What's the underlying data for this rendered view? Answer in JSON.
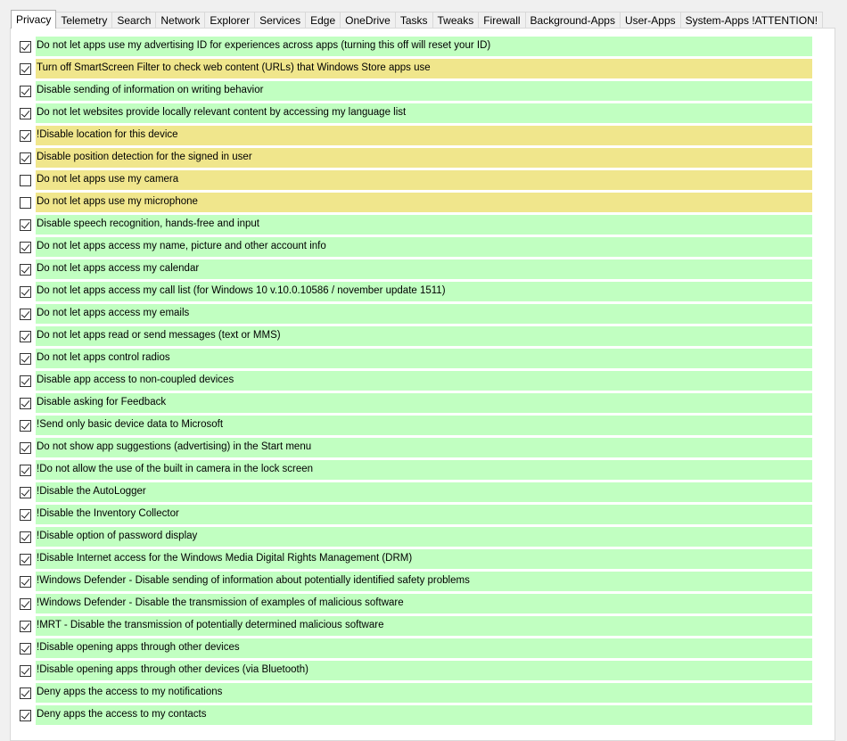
{
  "colors": {
    "safe": "#c1ffc1",
    "warning": "#f0e68c"
  },
  "tabs": [
    {
      "label": "Privacy",
      "active": true
    },
    {
      "label": "Telemetry"
    },
    {
      "label": "Search"
    },
    {
      "label": "Network"
    },
    {
      "label": "Explorer"
    },
    {
      "label": "Services"
    },
    {
      "label": "Edge"
    },
    {
      "label": "OneDrive"
    },
    {
      "label": "Tasks"
    },
    {
      "label": "Tweaks"
    },
    {
      "label": "Firewall"
    },
    {
      "label": "Background-Apps"
    },
    {
      "label": "User-Apps"
    },
    {
      "label": "System-Apps !ATTENTION!"
    }
  ],
  "items": [
    {
      "label": "Do not let apps use my advertising ID for experiences across apps (turning this off will reset your ID)",
      "checked": true,
      "color": "green"
    },
    {
      "label": "Turn off SmartScreen Filter to check web content (URLs) that Windows Store apps use",
      "checked": true,
      "color": "yellow"
    },
    {
      "label": "Disable sending of information on writing behavior",
      "checked": true,
      "color": "green"
    },
    {
      "label": "Do not let websites provide locally relevant content by accessing my language list",
      "checked": true,
      "color": "green"
    },
    {
      "label": "!Disable location for this device",
      "checked": true,
      "color": "yellow"
    },
    {
      "label": "Disable position detection for the signed in user",
      "checked": true,
      "color": "yellow"
    },
    {
      "label": "Do not let apps use my camera",
      "checked": false,
      "color": "yellow"
    },
    {
      "label": "Do not let apps use my microphone",
      "checked": false,
      "color": "yellow"
    },
    {
      "label": "Disable speech recognition, hands-free and input",
      "checked": true,
      "color": "green"
    },
    {
      "label": "Do not let apps access my name, picture and other account info",
      "checked": true,
      "color": "green"
    },
    {
      "label": "Do not let apps access my calendar",
      "checked": true,
      "color": "green"
    },
    {
      "label": "Do not let apps access my call list (for Windows 10 v.10.0.10586 / november update 1511)",
      "checked": true,
      "color": "green"
    },
    {
      "label": "Do not let apps access my emails",
      "checked": true,
      "color": "green"
    },
    {
      "label": "Do not let apps read or send messages (text or MMS)",
      "checked": true,
      "color": "green"
    },
    {
      "label": "Do not let apps control radios",
      "checked": true,
      "color": "green"
    },
    {
      "label": "Disable app access to non-coupled devices",
      "checked": true,
      "color": "green"
    },
    {
      "label": "Disable asking for Feedback",
      "checked": true,
      "color": "green"
    },
    {
      "label": "!Send only basic device data to Microsoft",
      "checked": true,
      "color": "green"
    },
    {
      "label": "Do not show app suggestions (advertising) in the Start menu",
      "checked": true,
      "color": "green"
    },
    {
      "label": "!Do not allow the use of the built in camera in the lock screen",
      "checked": true,
      "color": "green"
    },
    {
      "label": "!Disable the AutoLogger",
      "checked": true,
      "color": "green"
    },
    {
      "label": "!Disable the Inventory Collector",
      "checked": true,
      "color": "green"
    },
    {
      "label": "!Disable option of password display",
      "checked": true,
      "color": "green"
    },
    {
      "label": "!Disable Internet access for the Windows Media Digital Rights Management (DRM)",
      "checked": true,
      "color": "green"
    },
    {
      "label": "!Windows Defender - Disable sending of information about potentially identified safety problems",
      "checked": true,
      "color": "green"
    },
    {
      "label": "!Windows Defender - Disable the transmission of examples of malicious software",
      "checked": true,
      "color": "green"
    },
    {
      "label": "!MRT - Disable the transmission of potentially determined malicious software",
      "checked": true,
      "color": "green"
    },
    {
      "label": "!Disable opening apps through other devices",
      "checked": true,
      "color": "green"
    },
    {
      "label": "!Disable opening apps through other devices (via Bluetooth)",
      "checked": true,
      "color": "green"
    },
    {
      "label": "Deny apps the access to my notifications",
      "checked": true,
      "color": "green"
    },
    {
      "label": "Deny apps the access to my contacts",
      "checked": true,
      "color": "green"
    }
  ]
}
